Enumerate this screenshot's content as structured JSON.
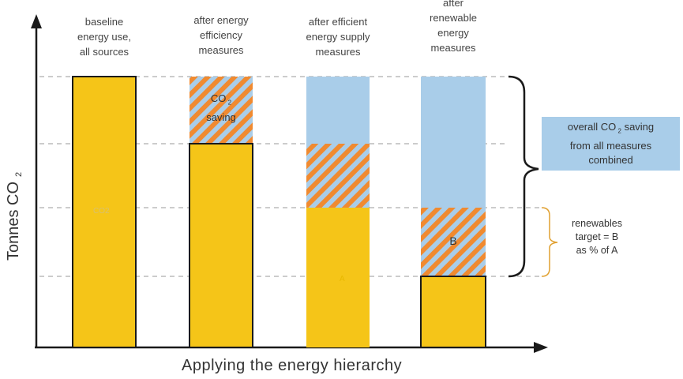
{
  "diagram": {
    "y_axis_label": "Tonnes CO",
    "y_axis_label_sub": "2",
    "x_axis_label": "Applying the energy hierarchy",
    "columns": [
      {
        "label_lines": [
          "baseline",
          "energy use,",
          "all sources"
        ]
      },
      {
        "label_lines": [
          "after energy",
          "efficiency",
          "measures"
        ],
        "segment_label": [
          "CO",
          "saving"
        ]
      },
      {
        "label_lines": [
          "after efficient",
          "energy supply",
          "measures"
        ]
      },
      {
        "label_lines": [
          "after",
          "renewable",
          "energy",
          "measures"
        ],
        "segment_label": [
          "B"
        ]
      }
    ],
    "level_marks": {
      "a": "A",
      "co2": "CO2"
    },
    "callout_overall": [
      "overall CO",
      "saving",
      "from all measures",
      "combined"
    ],
    "callout_renewables": [
      "renewables",
      "target = B",
      "as % of A"
    ],
    "colors": {
      "emissions": "#f5c518",
      "saving_hatch": "#f08a30",
      "saved": "#a9cde9",
      "outline": "#1a1a1a",
      "guide": "#9a9a9a",
      "brace_renewables": "#e0a030"
    }
  }
}
